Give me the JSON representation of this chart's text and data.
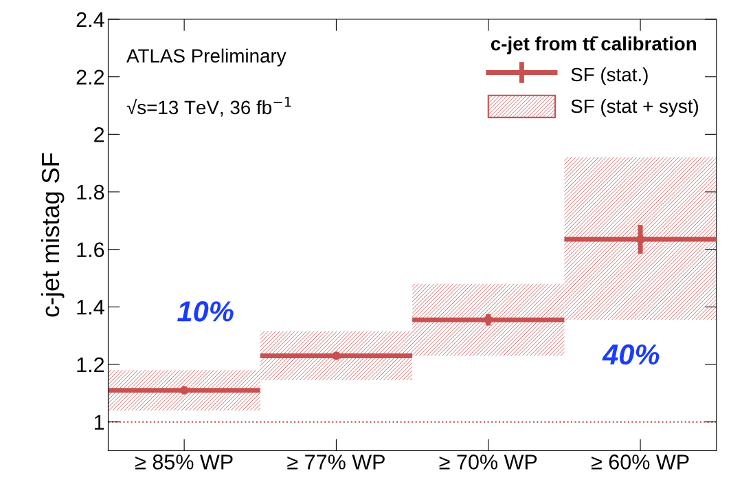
{
  "chart_data": {
    "type": "bar",
    "ylabel": "c-jet mistag SF",
    "categories": [
      "≥ 85% WP",
      "≥ 77% WP",
      "≥ 70% WP",
      "≥ 60% WP"
    ],
    "series": [
      {
        "name": "SF (stat + syst)",
        "color": "#c85050",
        "base": [
          1.04,
          1.145,
          1.23,
          1.355
        ],
        "values": [
          0.14,
          0.17,
          0.25,
          0.565
        ]
      },
      {
        "name": "SF (stat.)",
        "type": "scatter",
        "color": "#c85050",
        "values": [
          1.11,
          1.23,
          1.355,
          1.635
        ],
        "errors": [
          0.01,
          0.01,
          0.02,
          0.05
        ]
      }
    ],
    "legend_title": "c-jet from tt̄ calibration",
    "annotations": [
      "ATLAS Preliminary",
      "√s=13 TeV, 36 fb$^{−1}$",
      "10%",
      "40%"
    ],
    "ylim": [
      0.9,
      2.4
    ],
    "yticks": [
      1,
      1.2,
      1.4,
      1.6,
      1.8,
      2,
      2.2,
      2.4
    ],
    "ref_lines": [
      {
        "axis": "y",
        "value": 1,
        "color": "#c85050",
        "line_style": "dotted"
      }
    ],
    "grid": false,
    "legend": "top right",
    "marker": "circle"
  }
}
